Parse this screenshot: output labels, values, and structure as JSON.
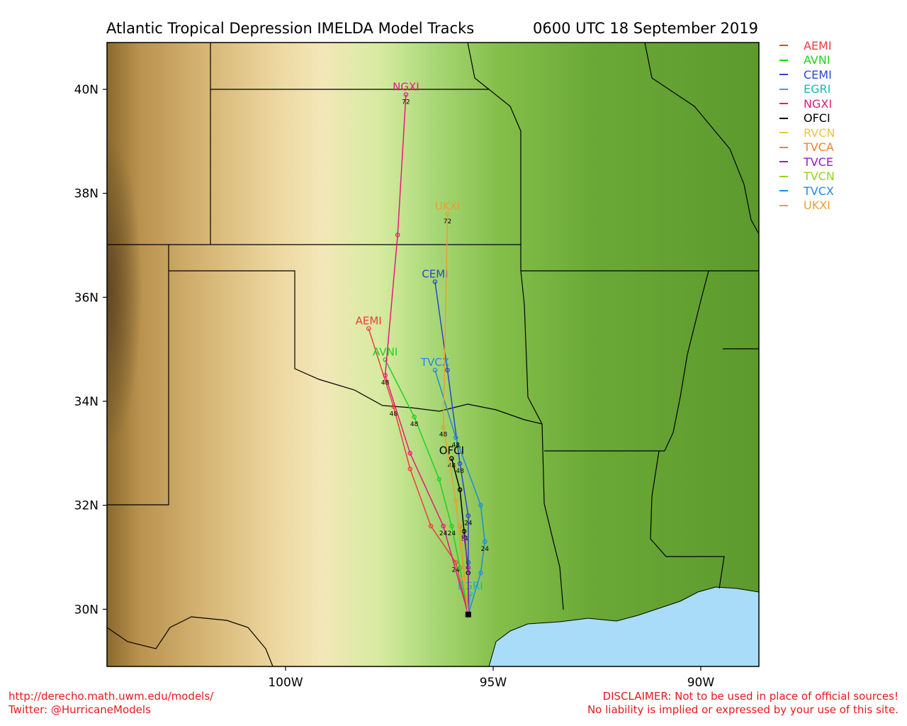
{
  "title_left": "Atlantic Tropical Depression IMELDA Model Tracks",
  "title_right": "0600 UTC 18 September 2019",
  "footer": {
    "url": "http://derecho.math.uwm.edu/models/",
    "twitter": "Twitter: @HurricaneModels",
    "disclaimer1": "DISCLAIMER: Not to be used in place of official sources!",
    "disclaimer2": "No liability is implied or expressed by your use of this site."
  },
  "map": {
    "lon_range": [
      -104.3,
      -88.6
    ],
    "lat_range": [
      28.9,
      40.9
    ],
    "lat_ticks": [
      {
        "lat": 30,
        "label": "30N"
      },
      {
        "lat": 32,
        "label": "32N"
      },
      {
        "lat": 34,
        "label": "34N"
      },
      {
        "lat": 36,
        "label": "36N"
      },
      {
        "lat": 38,
        "label": "38N"
      },
      {
        "lat": 40,
        "label": "40N"
      }
    ],
    "lon_ticks": [
      {
        "lon": -100,
        "label": "100W"
      },
      {
        "lon": -95,
        "label": "95W"
      },
      {
        "lon": -90,
        "label": "90W"
      }
    ],
    "start": {
      "lon": -95.6,
      "lat": 29.9
    }
  },
  "models": [
    {
      "name": "AEMI",
      "color": "#f03c3c",
      "label": "AEMI",
      "points": [
        [
          -95.6,
          29.9
        ],
        [
          -95.9,
          30.9
        ],
        [
          -96.5,
          31.6
        ],
        [
          -97.0,
          32.7
        ],
        [
          -97.4,
          33.9
        ],
        [
          -98.0,
          35.4
        ]
      ],
      "tau": {
        "24": 1,
        "48": 4
      }
    },
    {
      "name": "AVNI",
      "color": "#1ed21e",
      "label": "AVNI",
      "points": [
        [
          -95.6,
          29.9
        ],
        [
          -95.8,
          30.8
        ],
        [
          -96.0,
          31.6
        ],
        [
          -96.3,
          32.5
        ],
        [
          -96.9,
          33.7
        ],
        [
          -97.6,
          34.8
        ]
      ],
      "tau": {
        "24": 2,
        "48": 4
      }
    },
    {
      "name": "CEMI",
      "color": "#2846d2",
      "label": "CEMI",
      "points": [
        [
          -95.6,
          29.9
        ],
        [
          -95.6,
          30.9
        ],
        [
          -95.6,
          31.8
        ],
        [
          -95.8,
          32.8
        ],
        [
          -96.1,
          34.6
        ],
        [
          -96.4,
          36.3
        ]
      ],
      "tau": {
        "24": 2,
        "48": 3
      }
    },
    {
      "name": "EGRI",
      "color": "#1eb4b4",
      "label": "EGRI",
      "points": [
        [
          -95.6,
          29.9
        ],
        [
          -95.55,
          30.3
        ]
      ],
      "tau": {}
    },
    {
      "name": "NGXI",
      "color": "#e6197d",
      "label": "NGXI",
      "points": [
        [
          -95.6,
          29.9
        ],
        [
          -96.2,
          31.6
        ],
        [
          -97.0,
          33.0
        ],
        [
          -97.6,
          34.5
        ],
        [
          -97.3,
          37.2
        ],
        [
          -97.1,
          39.9
        ]
      ],
      "tau": {
        "24": 1,
        "48": 3,
        "72": 5
      }
    },
    {
      "name": "OFCI",
      "color": "#000000",
      "label": "OFCI",
      "points": [
        [
          -95.6,
          29.9
        ],
        [
          -95.6,
          30.7
        ],
        [
          -95.7,
          31.5
        ],
        [
          -95.8,
          32.3
        ],
        [
          -96.0,
          32.9
        ]
      ],
      "tau": {
        "24": 2,
        "48": 4
      }
    },
    {
      "name": "RVCN",
      "color": "#e6c83c",
      "label": "",
      "points": [
        [
          -95.6,
          29.9
        ],
        [
          -95.7,
          30.6
        ],
        [
          -95.8,
          31.5
        ]
      ],
      "tau": {}
    },
    {
      "name": "TVCA",
      "color": "#f08232",
      "label": "",
      "points": [
        [
          -95.6,
          29.9
        ],
        [
          -95.7,
          30.8
        ],
        [
          -95.8,
          31.6
        ]
      ],
      "tau": {}
    },
    {
      "name": "TVCE",
      "color": "#9619c8",
      "label": "",
      "points": [
        [
          -95.6,
          29.9
        ],
        [
          -95.6,
          30.8
        ],
        [
          -95.7,
          31.4
        ]
      ],
      "tau": {}
    },
    {
      "name": "TVCN",
      "color": "#96d228",
      "label": "",
      "points": [
        [
          -95.6,
          29.9
        ],
        [
          -95.7,
          30.9
        ],
        [
          -95.8,
          31.5
        ]
      ],
      "tau": {}
    },
    {
      "name": "TVCX",
      "color": "#1e8cdc",
      "label": "TVCX",
      "points": [
        [
          -95.6,
          29.9
        ],
        [
          -95.3,
          30.7
        ],
        [
          -95.2,
          31.3
        ],
        [
          -95.3,
          32.0
        ],
        [
          -95.9,
          33.3
        ],
        [
          -96.4,
          34.6
        ]
      ],
      "tau": {
        "24": 2,
        "48": 4
      }
    },
    {
      "name": "UKXI",
      "color": "#e6a032",
      "label": "UKXI",
      "points": [
        [
          -95.6,
          29.9
        ],
        [
          -95.7,
          30.6
        ],
        [
          -95.9,
          32.1
        ],
        [
          -96.2,
          33.5
        ],
        [
          -96.1,
          37.6
        ]
      ],
      "tau": {
        "48": 3,
        "72": 4
      }
    }
  ]
}
